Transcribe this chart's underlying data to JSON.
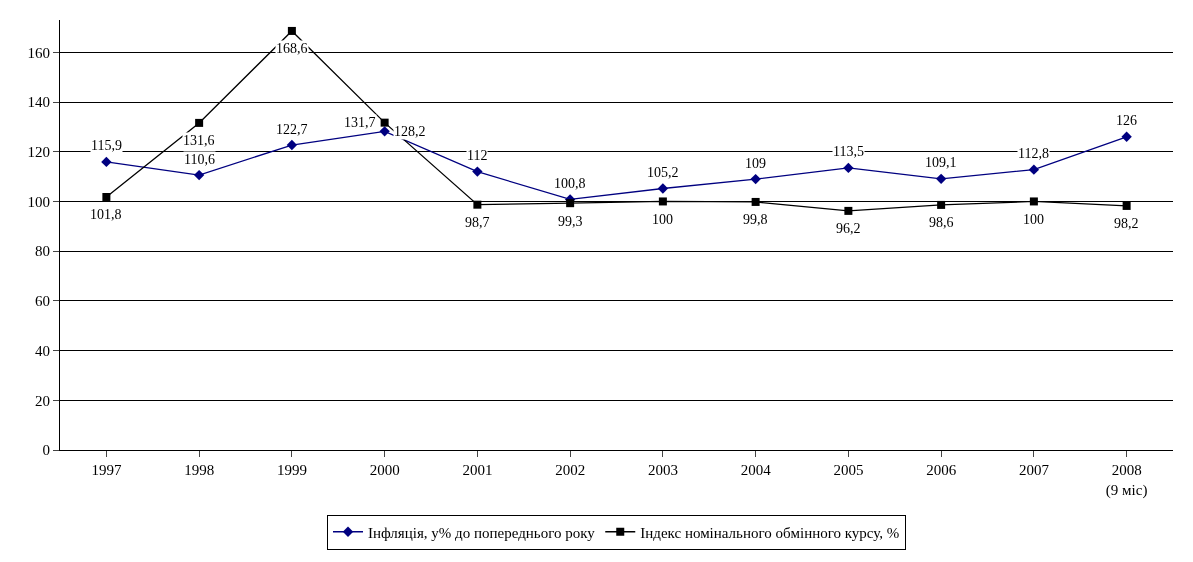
{
  "chart_data": {
    "type": "line",
    "categories": [
      "1997",
      "1998",
      "1999",
      "2000",
      "2001",
      "2002",
      "2003",
      "2004",
      "2005",
      "2006",
      "2007",
      "2008\n(9 міс)"
    ],
    "series": [
      {
        "name": "Інфляція, у% до попереднього року",
        "color": "#000080",
        "marker": "diamond",
        "values": [
          115.9,
          110.6,
          122.7,
          128.2,
          112,
          100.8,
          105.2,
          109,
          113.5,
          109.1,
          112.8,
          126
        ],
        "value_labels": [
          "115,9",
          "110,6",
          "122,7",
          "128,2",
          "112",
          "100,8",
          "105,2",
          "109",
          "113,5",
          "109,1",
          "112,8",
          "126"
        ]
      },
      {
        "name": "Індекс номінального обмінного курсу, %",
        "color": "#000000",
        "marker": "square",
        "values": [
          101.8,
          131.6,
          168.6,
          131.7,
          98.7,
          99.3,
          100,
          99.8,
          96.2,
          98.6,
          100,
          98.2
        ],
        "value_labels": [
          "101,8",
          "131,6",
          "168,6",
          "131,7",
          "98,7",
          "99,3",
          "100",
          "99,8",
          "96,2",
          "98,6",
          "100",
          "98,2"
        ]
      }
    ],
    "ylim": [
      0,
      173
    ],
    "yticks": [
      0,
      20,
      40,
      60,
      80,
      100,
      120,
      140,
      160
    ],
    "grid": "y",
    "legend": "bottom",
    "line_style": "solid"
  }
}
